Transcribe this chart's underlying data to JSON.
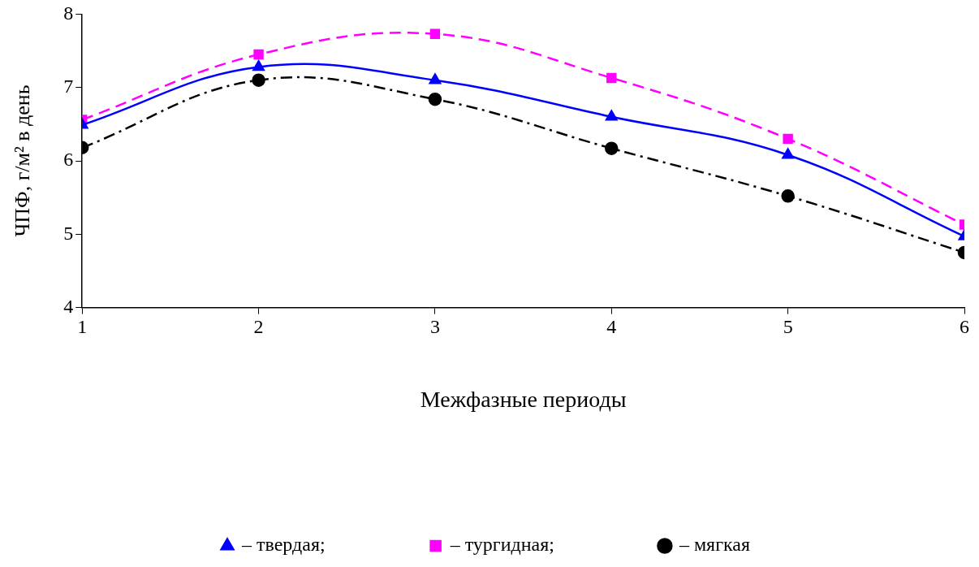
{
  "chart_data": {
    "type": "line",
    "xlabel": "Межфазные периоды",
    "ylabel": "ЧПФ, г/м² в день",
    "x": [
      1,
      2,
      3,
      4,
      5,
      6
    ],
    "xlim": [
      1,
      6
    ],
    "xticks": [
      1,
      2,
      3,
      4,
      5,
      6
    ],
    "ylim": [
      4,
      8
    ],
    "yticks": [
      4,
      5,
      6,
      7,
      8
    ],
    "grid": false,
    "legend": "bottom",
    "series": [
      {
        "name": "– твердая;",
        "color": "#0000ff",
        "values": [
          6.49,
          7.28,
          7.1,
          6.6,
          6.08,
          4.97
        ],
        "marker": "triangle",
        "line_style": "solid"
      },
      {
        "name": "– тургидная;",
        "color": "#ff00ff",
        "values": [
          6.56,
          7.45,
          7.73,
          7.13,
          6.3,
          5.13
        ],
        "marker": "square",
        "line_style": "dashed"
      },
      {
        "name": "– мягкая",
        "color": "#000000",
        "values": [
          6.18,
          7.1,
          6.84,
          6.17,
          5.52,
          4.75
        ],
        "marker": "circle",
        "line_style": "dashdot"
      }
    ]
  }
}
